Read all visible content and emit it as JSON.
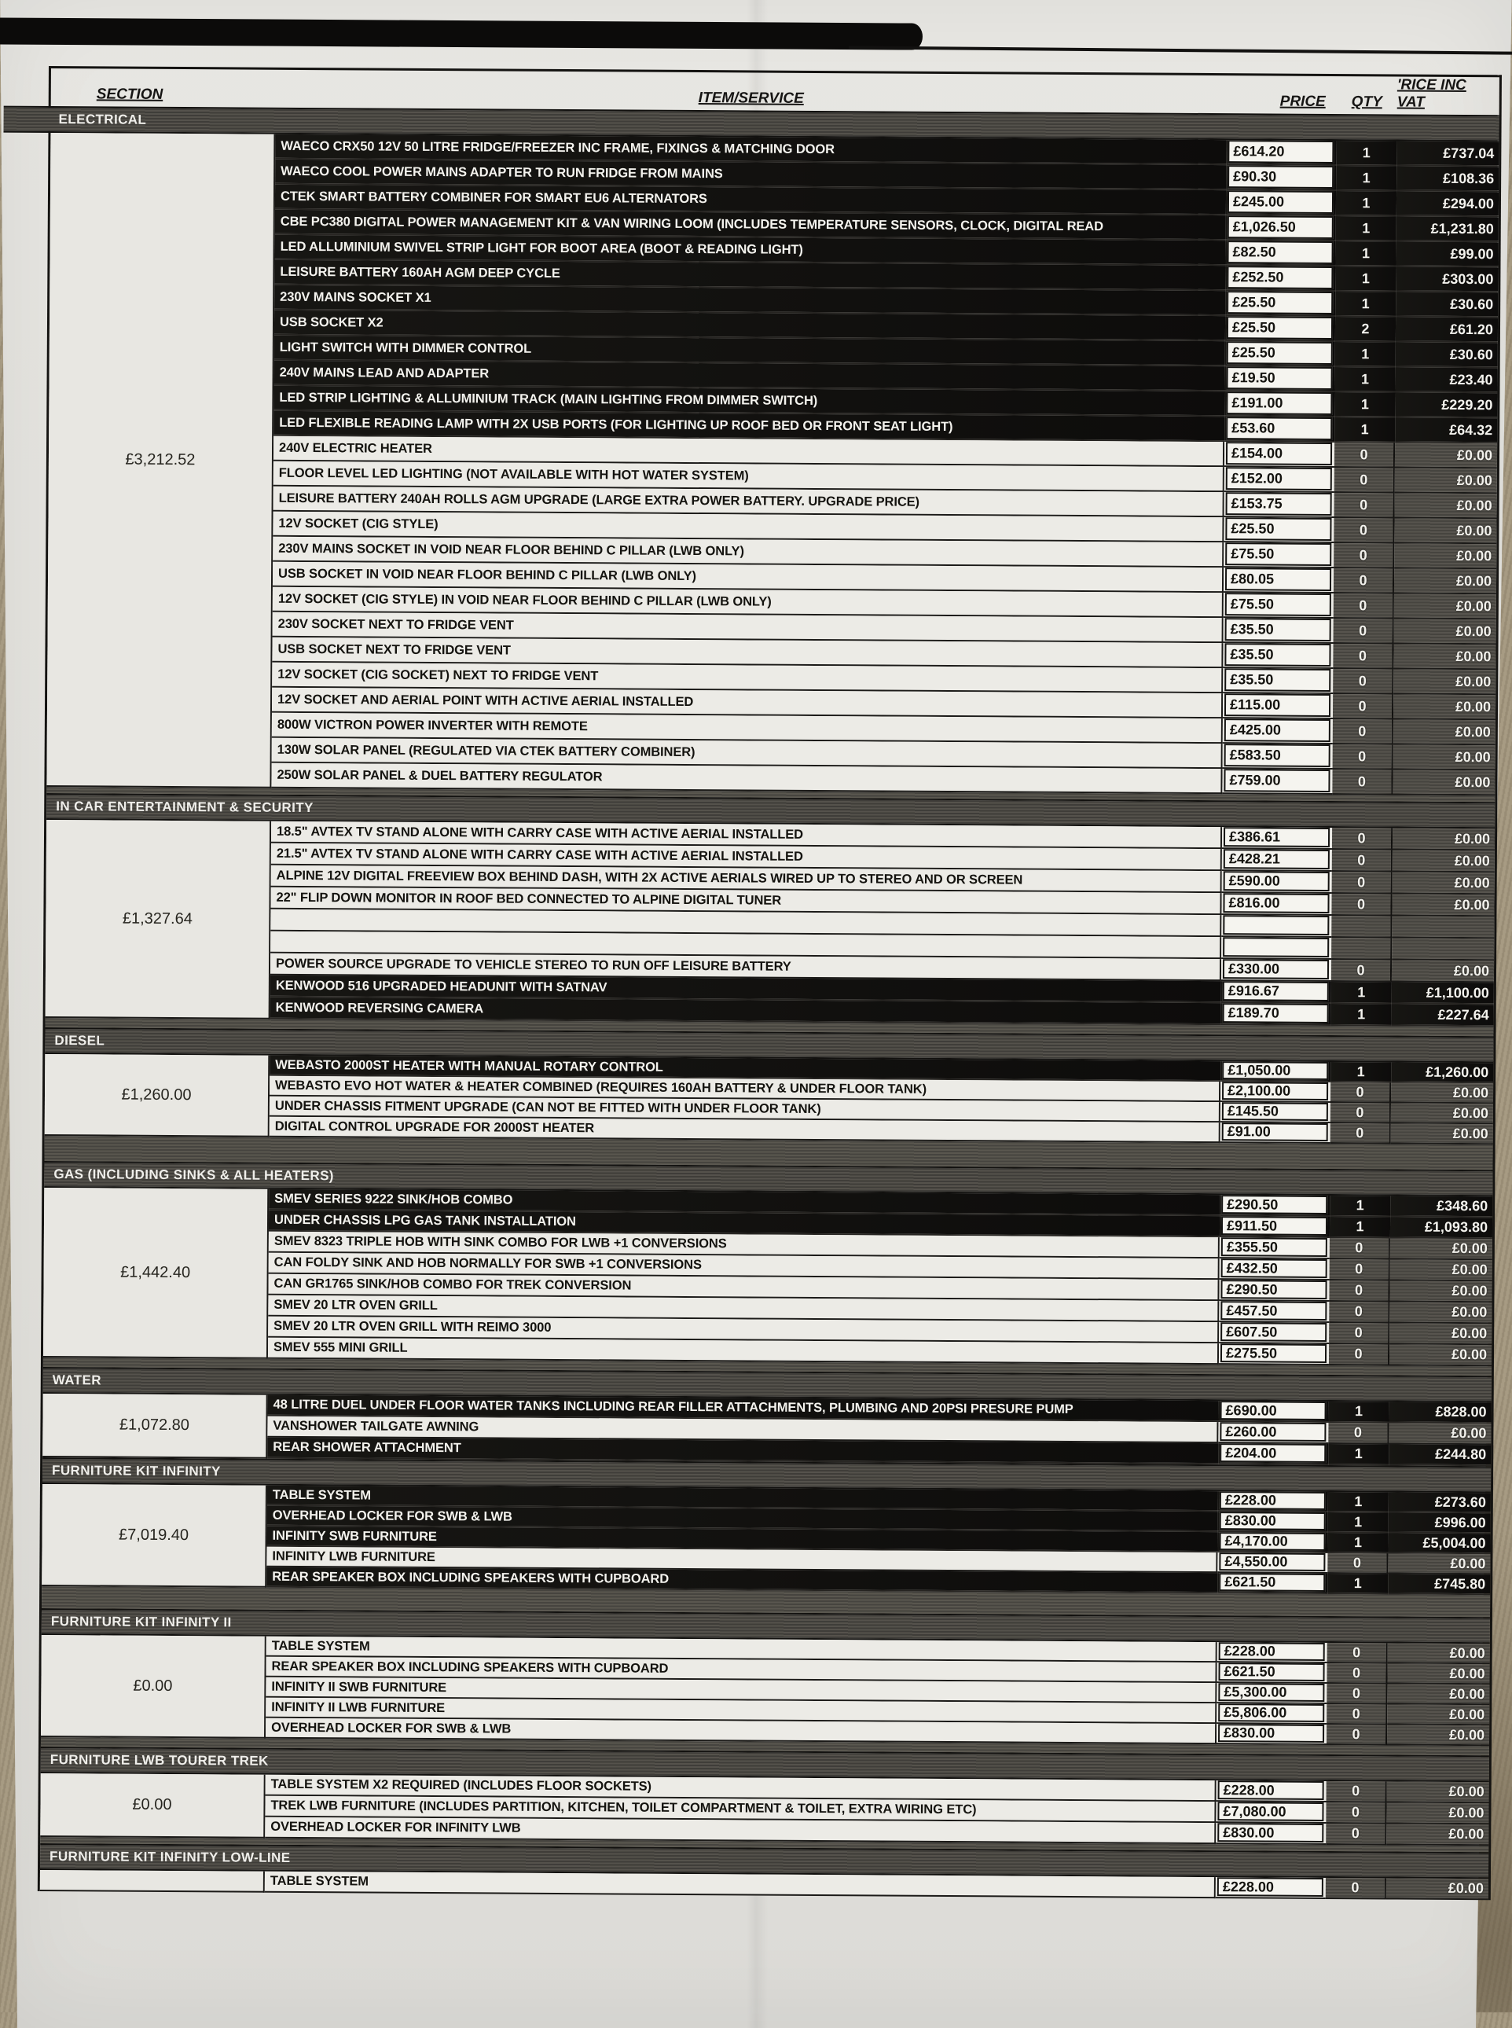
{
  "colors": {
    "paper": "#e3e2dd",
    "carpet": "#a79b83",
    "row_highlight": "#131210",
    "stripe_dark": "#46443f",
    "stripe_light": "#57544e",
    "box_white": "#f5f4ef",
    "ink": "#161514"
  },
  "header": {
    "col_section": "SECTION",
    "col_item": "ITEM/SERVICE",
    "col_price": "PRICE",
    "col_qty": "QTY",
    "col_vat": "'RICE INC VAT"
  },
  "sections": [
    {
      "name": "ELECTRICAL",
      "total": "£3,212.52",
      "rows": [
        {
          "item": "WAECO CRX50 12V 50 LITRE FRIDGE/FREEZER INC FRAME, FIXINGS & MATCHING DOOR",
          "price": "£614.20",
          "qty": "1",
          "vat": "£737.04"
        },
        {
          "item": "WAECO COOL POWER MAINS ADAPTER TO RUN FRIDGE FROM MAINS",
          "price": "£90.30",
          "qty": "1",
          "vat": "£108.36"
        },
        {
          "item": "CTEK SMART BATTERY COMBINER FOR SMART EU6 ALTERNATORS",
          "price": "£245.00",
          "qty": "1",
          "vat": "£294.00"
        },
        {
          "item": "CBE PC380 DIGITAL POWER MANAGEMENT KIT & VAN WIRING LOOM (INCLUDES TEMPERATURE SENSORS, CLOCK, DIGITAL READ",
          "price": "£1,026.50",
          "qty": "1",
          "vat": "£1,231.80"
        },
        {
          "item": "LED ALLUMINIUM SWIVEL STRIP LIGHT FOR BOOT AREA (BOOT & READING LIGHT)",
          "price": "£82.50",
          "qty": "1",
          "vat": "£99.00"
        },
        {
          "item": "LEISURE BATTERY 160AH AGM DEEP CYCLE",
          "price": "£252.50",
          "qty": "1",
          "vat": "£303.00"
        },
        {
          "item": "230V MAINS SOCKET X1",
          "price": "£25.50",
          "qty": "1",
          "vat": "£30.60"
        },
        {
          "item": "USB SOCKET X2",
          "price": "£25.50",
          "qty": "2",
          "vat": "£61.20"
        },
        {
          "item": "LIGHT SWITCH WITH DIMMER CONTROL",
          "price": "£25.50",
          "qty": "1",
          "vat": "£30.60"
        },
        {
          "item": "240V MAINS LEAD AND ADAPTER",
          "price": "£19.50",
          "qty": "1",
          "vat": "£23.40"
        },
        {
          "item": "LED STRIP LIGHTING & ALLUMINIUM TRACK (MAIN LIGHTING FROM DIMMER SWITCH)",
          "price": "£191.00",
          "qty": "1",
          "vat": "£229.20"
        },
        {
          "item": "LED FLEXIBLE READING LAMP WITH 2X USB PORTS (FOR LIGHTING UP ROOF BED OR FRONT SEAT LIGHT)",
          "price": "£53.60",
          "qty": "1",
          "vat": "£64.32"
        },
        {
          "item": "240V ELECTRIC HEATER",
          "price": "£154.00",
          "qty": "0",
          "vat": "£0.00"
        },
        {
          "item": "FLOOR LEVEL LED LIGHTING (NOT AVAILABLE WITH HOT WATER SYSTEM)",
          "price": "£152.00",
          "qty": "0",
          "vat": "£0.00"
        },
        {
          "item": "LEISURE BATTERY 240AH ROLLS AGM UPGRADE (LARGE EXTRA POWER BATTERY. UPGRADE PRICE)",
          "price": "£153.75",
          "qty": "0",
          "vat": "£0.00"
        },
        {
          "item": "12V SOCKET (CIG STYLE)",
          "price": "£25.50",
          "qty": "0",
          "vat": "£0.00"
        },
        {
          "item": "230V MAINS SOCKET IN VOID NEAR FLOOR BEHIND C PILLAR (LWB ONLY)",
          "price": "£75.50",
          "qty": "0",
          "vat": "£0.00"
        },
        {
          "item": "USB SOCKET IN VOID NEAR FLOOR BEHIND C PILLAR (LWB ONLY)",
          "price": "£80.05",
          "qty": "0",
          "vat": "£0.00"
        },
        {
          "item": "12V SOCKET (CIG STYLE) IN VOID NEAR FLOOR BEHIND C PILLAR (LWB ONLY)",
          "price": "£75.50",
          "qty": "0",
          "vat": "£0.00"
        },
        {
          "item": "230V SOCKET NEXT TO FRIDGE VENT",
          "price": "£35.50",
          "qty": "0",
          "vat": "£0.00"
        },
        {
          "item": "USB SOCKET NEXT TO FRIDGE VENT",
          "price": "£35.50",
          "qty": "0",
          "vat": "£0.00"
        },
        {
          "item": "12V SOCKET (CIG SOCKET) NEXT TO FRIDGE VENT",
          "price": "£35.50",
          "qty": "0",
          "vat": "£0.00"
        },
        {
          "item": "12V SOCKET AND AERIAL POINT WITH ACTIVE AERIAL INSTALLED",
          "price": "£115.00",
          "qty": "0",
          "vat": "£0.00"
        },
        {
          "item": "800W VICTRON POWER INVERTER WITH REMOTE",
          "price": "£425.00",
          "qty": "0",
          "vat": "£0.00"
        },
        {
          "item": "130W SOLAR PANEL (REGULATED VIA CTEK BATTERY COMBINER)",
          "price": "£583.50",
          "qty": "0",
          "vat": "£0.00"
        },
        {
          "item": "250W SOLAR PANEL & DUEL BATTERY REGULATOR",
          "price": "£759.00",
          "qty": "0",
          "vat": "£0.00"
        }
      ]
    },
    {
      "name": "IN CAR ENTERTAINMENT & SECURITY",
      "total": "£1,327.64",
      "rows": [
        {
          "item": "18.5\" AVTEX TV  STAND ALONE WITH CARRY CASE WITH ACTIVE AERIAL INSTALLED",
          "price": "£386.61",
          "qty": "0",
          "vat": "£0.00"
        },
        {
          "item": "21.5\" AVTEX TV  STAND ALONE WITH CARRY CASE WITH ACTIVE AERIAL INSTALLED",
          "price": "£428.21",
          "qty": "0",
          "vat": "£0.00"
        },
        {
          "item": "ALPINE 12V DIGITAL FREEVIEW BOX BEHIND DASH, WITH 2X ACTIVE AERIALS WIRED UP TO STEREO AND OR SCREEN",
          "price": "£590.00",
          "qty": "0",
          "vat": "£0.00"
        },
        {
          "item": "22\" FLIP DOWN MONITOR IN ROOF BED CONNECTED TO ALPINE DIGITAL TUNER",
          "price": "£816.00",
          "qty": "0",
          "vat": "£0.00"
        },
        {
          "item": "",
          "price": "",
          "qty": "",
          "vat": ""
        },
        {
          "item": "",
          "price": "",
          "qty": "",
          "vat": ""
        },
        {
          "item": "POWER SOURCE UPGRADE TO VEHICLE STEREO TO RUN OFF LEISURE BATTERY",
          "price": "£330.00",
          "qty": "0",
          "vat": "£0.00"
        },
        {
          "item": "KENWOOD 516 UPGRADED HEADUNIT WITH SATNAV",
          "price": "£916.67",
          "qty": "1",
          "vat": "£1,100.00"
        },
        {
          "item": "KENWOOD REVERSING CAMERA",
          "price": "£189.70",
          "qty": "1",
          "vat": "£227.64"
        }
      ]
    },
    {
      "name": "DIESEL",
      "total": "£1,260.00",
      "rows": [
        {
          "item": "WEBASTO 2000ST HEATER WITH MANUAL ROTARY CONTROL",
          "price": "£1,050.00",
          "qty": "1",
          "vat": "£1,260.00"
        },
        {
          "item": "WEBASTO EVO HOT WATER & HEATER COMBINED (REQUIRES 160AH BATTERY & UNDER FLOOR TANK)",
          "price": "£2,100.00",
          "qty": "0",
          "vat": "£0.00"
        },
        {
          "item": "UNDER CHASSIS FITMENT UPGRADE (CAN NOT BE FITTED WITH UNDER FLOOR TANK)",
          "price": "£145.50",
          "qty": "0",
          "vat": "£0.00"
        },
        {
          "item": "DIGITAL CONTROL UPGRADE FOR 2000ST HEATER",
          "price": "£91.00",
          "qty": "0",
          "vat": "£0.00"
        }
      ]
    },
    {
      "name": "GAS (INCLUDING SINKS & ALL HEATERS)",
      "total": "£1,442.40",
      "rows": [
        {
          "item": "SMEV SERIES 9222 SINK/HOB COMBO",
          "price": "£290.50",
          "qty": "1",
          "vat": "£348.60"
        },
        {
          "item": "UNDER CHASSIS LPG GAS TANK INSTALLATION",
          "price": "£911.50",
          "qty": "1",
          "vat": "£1,093.80"
        },
        {
          "item": "SMEV 8323 TRIPLE HOB WITH SINK COMBO FOR LWB +1 CONVERSIONS",
          "price": "£355.50",
          "qty": "0",
          "vat": "£0.00"
        },
        {
          "item": "CAN FOLDY SINK AND HOB NORMALLY FOR SWB +1 CONVERSIONS",
          "price": "£432.50",
          "qty": "0",
          "vat": "£0.00"
        },
        {
          "item": "CAN GR1765 SINK/HOB COMBO FOR TREK CONVERSION",
          "price": "£290.50",
          "qty": "0",
          "vat": "£0.00"
        },
        {
          "item": "SMEV 20 LTR OVEN GRILL",
          "price": "£457.50",
          "qty": "0",
          "vat": "£0.00"
        },
        {
          "item": "SMEV 20 LTR OVEN GRILL WITH REIMO 3000",
          "price": "£607.50",
          "qty": "0",
          "vat": "£0.00"
        },
        {
          "item": "SMEV 555 MINI GRILL",
          "price": "£275.50",
          "qty": "0",
          "vat": "£0.00"
        }
      ]
    },
    {
      "name": "WATER",
      "total": "£1,072.80",
      "rows": [
        {
          "item": "48 LITRE DUEL UNDER FLOOR WATER TANKS INCLUDING REAR  FILLER ATTACHMENTS, PLUMBING AND 20PSI PRESURE PUMP",
          "price": "£690.00",
          "qty": "1",
          "vat": "£828.00"
        },
        {
          "item": "VANSHOWER TAILGATE AWNING",
          "price": "£260.00",
          "qty": "0",
          "vat": "£0.00"
        },
        {
          "item": "REAR SHOWER ATTACHMENT",
          "price": "£204.00",
          "qty": "1",
          "vat": "£244.80"
        }
      ]
    },
    {
      "name": "FURNITURE KIT INFINITY",
      "total": "£7,019.40",
      "rows": [
        {
          "item": "TABLE SYSTEM",
          "price": "£228.00",
          "qty": "1",
          "vat": "£273.60"
        },
        {
          "item": "OVERHEAD LOCKER FOR SWB & LWB",
          "price": "£830.00",
          "qty": "1",
          "vat": "£996.00"
        },
        {
          "item": "INFINITY SWB FURNITURE",
          "price": "£4,170.00",
          "qty": "1",
          "vat": "£5,004.00"
        },
        {
          "item": "INFINITY LWB FURNITURE",
          "price": "£4,550.00",
          "qty": "0",
          "vat": "£0.00"
        },
        {
          "item": "REAR SPEAKER BOX INCLUDING SPEAKERS WITH CUPBOARD",
          "price": "£621.50",
          "qty": "1",
          "vat": "£745.80"
        }
      ]
    },
    {
      "name": "FURNITURE KIT INFINITY II",
      "total": "£0.00",
      "rows": [
        {
          "item": "TABLE SYSTEM",
          "price": "£228.00",
          "qty": "0",
          "vat": "£0.00"
        },
        {
          "item": "REAR SPEAKER BOX INCLUDING SPEAKERS WITH CUPBOARD",
          "price": "£621.50",
          "qty": "0",
          "vat": "£0.00"
        },
        {
          "item": "INFINITY II SWB FURNITURE",
          "price": "£5,300.00",
          "qty": "0",
          "vat": "£0.00"
        },
        {
          "item": "INFINITY II LWB FURNITURE",
          "price": "£5,806.00",
          "qty": "0",
          "vat": "£0.00"
        },
        {
          "item": "OVERHEAD LOCKER FOR SWB & LWB",
          "price": "£830.00",
          "qty": "0",
          "vat": "£0.00"
        }
      ]
    },
    {
      "name": "FURNITURE LWB TOURER TREK",
      "total": "£0.00",
      "rows": [
        {
          "item": "TABLE SYSTEM X2 REQUIRED (INCLUDES FLOOR SOCKETS)",
          "price": "£228.00",
          "qty": "0",
          "vat": "£0.00"
        },
        {
          "item": "TREK LWB FURNITURE (INCLUDES PARTITION, KITCHEN, TOILET COMPARTMENT & TOILET, EXTRA WIRING ETC)",
          "price": "£7,080.00",
          "qty": "0",
          "vat": "£0.00"
        },
        {
          "item": "OVERHEAD LOCKER FOR INFINITY LWB",
          "price": "£830.00",
          "qty": "0",
          "vat": "£0.00"
        }
      ]
    },
    {
      "name": "FURNITURE KIT INFINITY LOW-LINE",
      "total": "",
      "rows": [
        {
          "item": "TABLE SYSTEM",
          "price": "£228.00",
          "qty": "0",
          "vat": "£0.00"
        }
      ]
    }
  ]
}
